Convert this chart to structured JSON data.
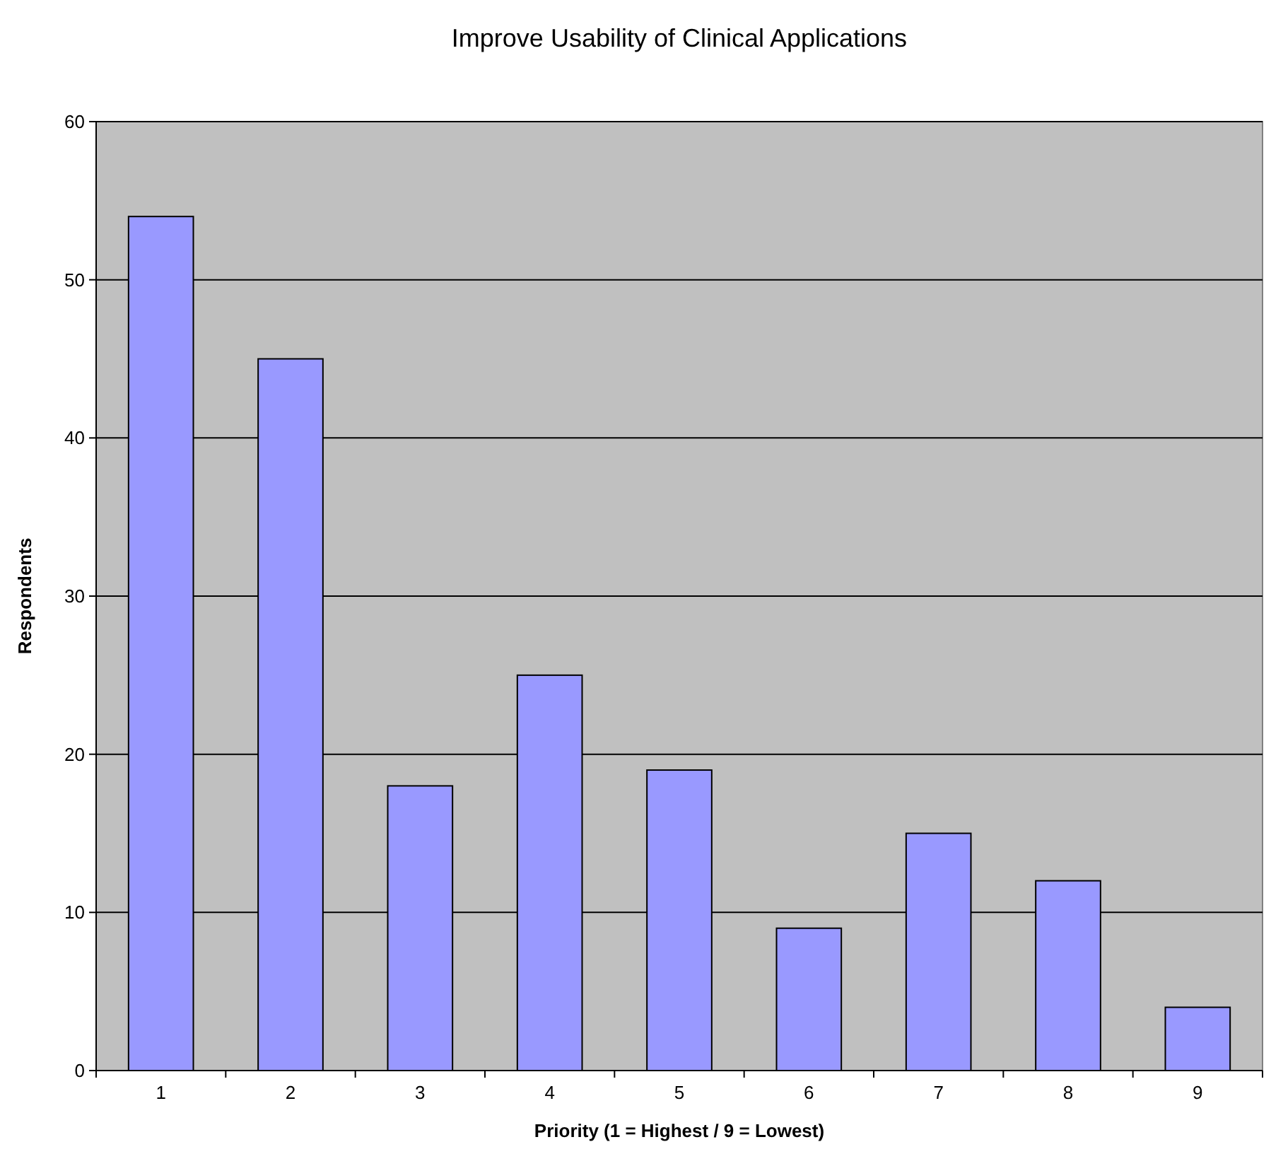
{
  "chart_data": {
    "type": "bar",
    "title": "Improve Usability of Clinical Applications",
    "xlabel": "Priority (1 = Highest / 9 = Lowest)",
    "ylabel": "Respondents",
    "categories": [
      "1",
      "2",
      "3",
      "4",
      "5",
      "6",
      "7",
      "8",
      "9"
    ],
    "values": [
      54,
      45,
      18,
      25,
      19,
      9,
      15,
      12,
      4
    ],
    "color": "#9999ff",
    "ylim": [
      0,
      60
    ],
    "yticks": [
      0,
      10,
      20,
      30,
      40,
      50,
      60
    ],
    "grid": "y"
  }
}
